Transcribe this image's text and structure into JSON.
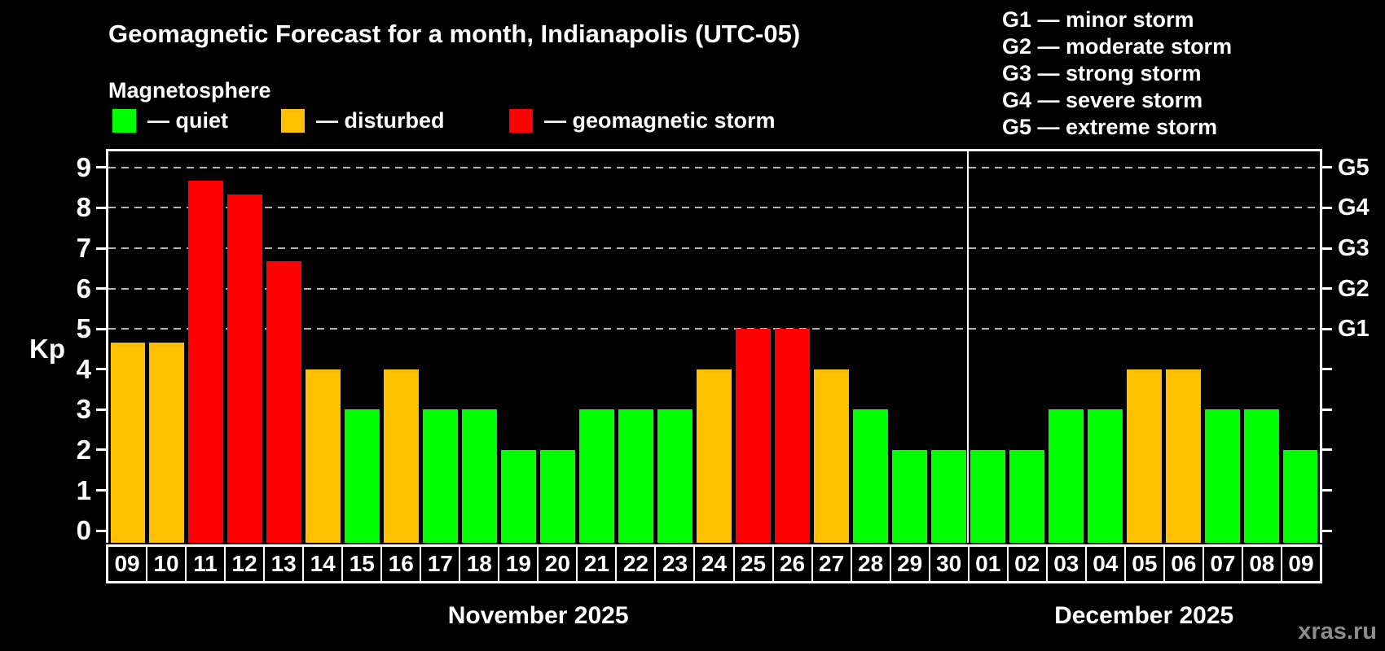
{
  "title": "Geomagnetic Forecast for a month, Indianapolis (UTC-05)",
  "subtitle": "Magnetosphere",
  "kp_legend": [
    {
      "name": "quiet",
      "label": "— quiet",
      "color": "#00ff00"
    },
    {
      "name": "disturbed",
      "label": "— disturbed",
      "color": "#ffc000"
    },
    {
      "name": "geomagnetic-storm",
      "label": "— geomagnetic storm",
      "color": "#ff0000"
    }
  ],
  "g_legend": [
    "G1 — minor storm",
    "G2 — moderate storm",
    "G3 — strong storm",
    "G4 — severe storm",
    "G5 — extreme storm"
  ],
  "watermark": "xras.ru",
  "chart_data": {
    "type": "bar",
    "title": "Geomagnetic Forecast for a month, Indianapolis (UTC-05)",
    "ylabel": "Kp",
    "ylim": [
      -0.3,
      9.4
    ],
    "yticks": [
      0,
      1,
      2,
      3,
      4,
      5,
      6,
      7,
      8,
      9
    ],
    "gridlines_kp": [
      5,
      6,
      7,
      8,
      9
    ],
    "right_axis": [
      {
        "kp": 5,
        "label": "G1"
      },
      {
        "kp": 6,
        "label": "G2"
      },
      {
        "kp": 7,
        "label": "G3"
      },
      {
        "kp": 8,
        "label": "G4"
      },
      {
        "kp": 9,
        "label": "G5"
      }
    ],
    "status_colors": {
      "quiet": "#00ff00",
      "disturbed": "#ffc000",
      "storm": "#ff0000"
    },
    "months": [
      {
        "label": "November 2025",
        "short": "nov",
        "days": 22
      },
      {
        "label": "December 2025",
        "short": "dec",
        "days": 9
      }
    ],
    "bars": [
      {
        "month": "nov",
        "day": "09",
        "kp": 4.67,
        "status": "disturbed"
      },
      {
        "month": "nov",
        "day": "10",
        "kp": 4.67,
        "status": "disturbed"
      },
      {
        "month": "nov",
        "day": "11",
        "kp": 8.67,
        "status": "storm"
      },
      {
        "month": "nov",
        "day": "12",
        "kp": 8.33,
        "status": "storm"
      },
      {
        "month": "nov",
        "day": "13",
        "kp": 6.67,
        "status": "storm"
      },
      {
        "month": "nov",
        "day": "14",
        "kp": 4,
        "status": "disturbed"
      },
      {
        "month": "nov",
        "day": "15",
        "kp": 3,
        "status": "quiet"
      },
      {
        "month": "nov",
        "day": "16",
        "kp": 4,
        "status": "disturbed"
      },
      {
        "month": "nov",
        "day": "17",
        "kp": 3,
        "status": "quiet"
      },
      {
        "month": "nov",
        "day": "18",
        "kp": 3,
        "status": "quiet"
      },
      {
        "month": "nov",
        "day": "19",
        "kp": 2,
        "status": "quiet"
      },
      {
        "month": "nov",
        "day": "20",
        "kp": 2,
        "status": "quiet"
      },
      {
        "month": "nov",
        "day": "21",
        "kp": 3,
        "status": "quiet"
      },
      {
        "month": "nov",
        "day": "22",
        "kp": 3,
        "status": "quiet"
      },
      {
        "month": "nov",
        "day": "23",
        "kp": 3,
        "status": "quiet"
      },
      {
        "month": "nov",
        "day": "24",
        "kp": 4,
        "status": "disturbed"
      },
      {
        "month": "nov",
        "day": "25",
        "kp": 5,
        "status": "storm"
      },
      {
        "month": "nov",
        "day": "26",
        "kp": 5,
        "status": "storm"
      },
      {
        "month": "nov",
        "day": "27",
        "kp": 4,
        "status": "disturbed"
      },
      {
        "month": "nov",
        "day": "28",
        "kp": 3,
        "status": "quiet"
      },
      {
        "month": "nov",
        "day": "29",
        "kp": 2,
        "status": "quiet"
      },
      {
        "month": "nov",
        "day": "30",
        "kp": 2,
        "status": "quiet"
      },
      {
        "month": "dec",
        "day": "01",
        "kp": 2,
        "status": "quiet"
      },
      {
        "month": "dec",
        "day": "02",
        "kp": 2,
        "status": "quiet"
      },
      {
        "month": "dec",
        "day": "03",
        "kp": 3,
        "status": "quiet"
      },
      {
        "month": "dec",
        "day": "04",
        "kp": 3,
        "status": "quiet"
      },
      {
        "month": "dec",
        "day": "05",
        "kp": 4,
        "status": "disturbed"
      },
      {
        "month": "dec",
        "day": "06",
        "kp": 4,
        "status": "disturbed"
      },
      {
        "month": "dec",
        "day": "07",
        "kp": 3,
        "status": "quiet"
      },
      {
        "month": "dec",
        "day": "08",
        "kp": 3,
        "status": "quiet"
      },
      {
        "month": "dec",
        "day": "09",
        "kp": 2,
        "status": "quiet"
      }
    ]
  }
}
